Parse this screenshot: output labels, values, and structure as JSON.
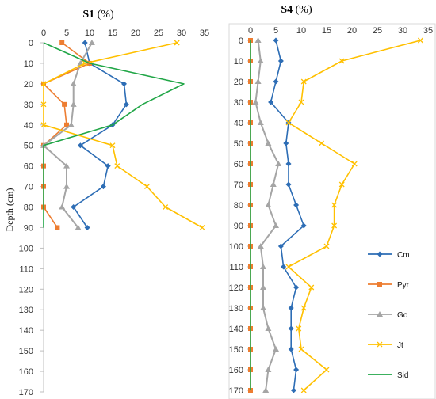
{
  "chart_data": [
    {
      "type": "line",
      "panel": "S1",
      "title": "S1",
      "title_suffix": " (%)",
      "xlim": [
        0,
        35
      ],
      "xticks": [
        0,
        5,
        10,
        15,
        20,
        25,
        30,
        35
      ],
      "ylim": [
        0,
        170
      ],
      "yticks": [
        0,
        10,
        20,
        30,
        40,
        50,
        60,
        70,
        80,
        90,
        100,
        110,
        120,
        130,
        140,
        150,
        160,
        170
      ],
      "ylabel": "Depth (cm)",
      "series": [
        {
          "name": "Cm",
          "color": "#2d6db5",
          "marker": "diamond",
          "depth": [
            0,
            10,
            20,
            30,
            40,
            50,
            60,
            70,
            80,
            90
          ],
          "values": [
            9,
            10,
            17.5,
            18,
            15,
            8,
            14,
            13,
            6.5,
            9.5
          ]
        },
        {
          "name": "Pyr",
          "color": "#ed7d31",
          "marker": "square",
          "depth": [
            0,
            10,
            20,
            30,
            40,
            50,
            60,
            70,
            80,
            90
          ],
          "values": [
            4,
            10,
            0,
            4.5,
            5,
            0,
            0,
            0,
            0,
            3
          ]
        },
        {
          "name": "Go",
          "color": "#a5a5a5",
          "marker": "triangle",
          "depth": [
            0,
            10,
            20,
            30,
            40,
            50,
            60,
            70,
            80,
            90
          ],
          "values": [
            10.5,
            8,
            6.5,
            6.5,
            6,
            0,
            5,
            5,
            4,
            7.5
          ]
        },
        {
          "name": "Jt",
          "color": "#ffc000",
          "marker": "x",
          "depth": [
            0,
            10,
            20,
            30,
            40,
            50,
            60,
            70,
            80,
            90
          ],
          "values": [
            29,
            9,
            0,
            0,
            0,
            15,
            16,
            22.5,
            26.5,
            34.5
          ]
        },
        {
          "name": "Sid",
          "color": "#21a647",
          "marker": "none",
          "depth": [
            0,
            10,
            20,
            30,
            40,
            50,
            60,
            70,
            80,
            90
          ],
          "values": [
            0,
            10,
            30.5,
            21.5,
            15,
            0,
            0,
            0,
            0,
            0
          ]
        }
      ]
    },
    {
      "type": "line",
      "panel": "S4",
      "title": "S4",
      "title_suffix": " (%)",
      "xlim": [
        0,
        35
      ],
      "xticks": [
        0,
        5,
        10,
        15,
        20,
        25,
        30,
        35
      ],
      "ylim": [
        0,
        170
      ],
      "yticks": [
        0,
        10,
        20,
        30,
        40,
        50,
        60,
        70,
        80,
        90,
        100,
        110,
        120,
        130,
        140,
        150,
        160,
        170
      ],
      "series": [
        {
          "name": "Cm",
          "color": "#2d6db5",
          "marker": "diamond",
          "depth": [
            0,
            10,
            20,
            30,
            40,
            50,
            60,
            70,
            80,
            90,
            100,
            110,
            120,
            130,
            140,
            150,
            160,
            170
          ],
          "values": [
            5,
            6,
            5,
            4,
            7.5,
            7,
            7.5,
            7.5,
            9,
            10.5,
            6,
            6.5,
            9,
            8,
            8,
            8,
            9,
            8.5
          ]
        },
        {
          "name": "Pyr",
          "color": "#ed7d31",
          "marker": "square",
          "depth": [
            0,
            10,
            20,
            30,
            40,
            50,
            60,
            70,
            80,
            90,
            100,
            110,
            120,
            130,
            140,
            150,
            160,
            170
          ],
          "values": [
            0,
            0,
            0,
            0,
            0,
            0,
            0,
            0,
            0,
            0,
            0,
            0,
            0,
            0,
            0,
            0,
            0,
            0
          ]
        },
        {
          "name": "Go",
          "color": "#a5a5a5",
          "marker": "triangle",
          "depth": [
            0,
            10,
            20,
            30,
            40,
            50,
            60,
            70,
            80,
            90,
            100,
            110,
            120,
            130,
            140,
            150,
            160,
            170
          ],
          "values": [
            1.5,
            2,
            1.5,
            1,
            2,
            3.5,
            5.5,
            4.5,
            3.5,
            5,
            2,
            2.5,
            2.5,
            2.5,
            3.5,
            5,
            3.5,
            3
          ]
        },
        {
          "name": "Jt",
          "color": "#ffc000",
          "marker": "x",
          "depth": [
            0,
            10,
            20,
            30,
            40,
            50,
            60,
            70,
            80,
            90,
            100,
            110,
            120,
            130,
            140,
            150,
            160,
            170
          ],
          "values": [
            33.5,
            18,
            10.5,
            10,
            7.5,
            14,
            20.5,
            18,
            16.5,
            16.5,
            15,
            7.5,
            12,
            10.5,
            9.5,
            10,
            15,
            10.5
          ]
        },
        {
          "name": "Sid",
          "color": "#21a647",
          "marker": "none",
          "depth": [
            0,
            10,
            20,
            30,
            40,
            50,
            60,
            70,
            80,
            90,
            100,
            110,
            120,
            130,
            140,
            150,
            160,
            170
          ],
          "values": [
            0,
            0,
            0,
            0,
            0,
            0,
            0,
            0,
            0,
            0,
            0,
            0,
            0,
            0,
            0,
            0,
            0,
            0
          ]
        }
      ]
    }
  ],
  "legend": [
    "Cm",
    "Pyr",
    "Go",
    "Jt",
    "Sid"
  ]
}
